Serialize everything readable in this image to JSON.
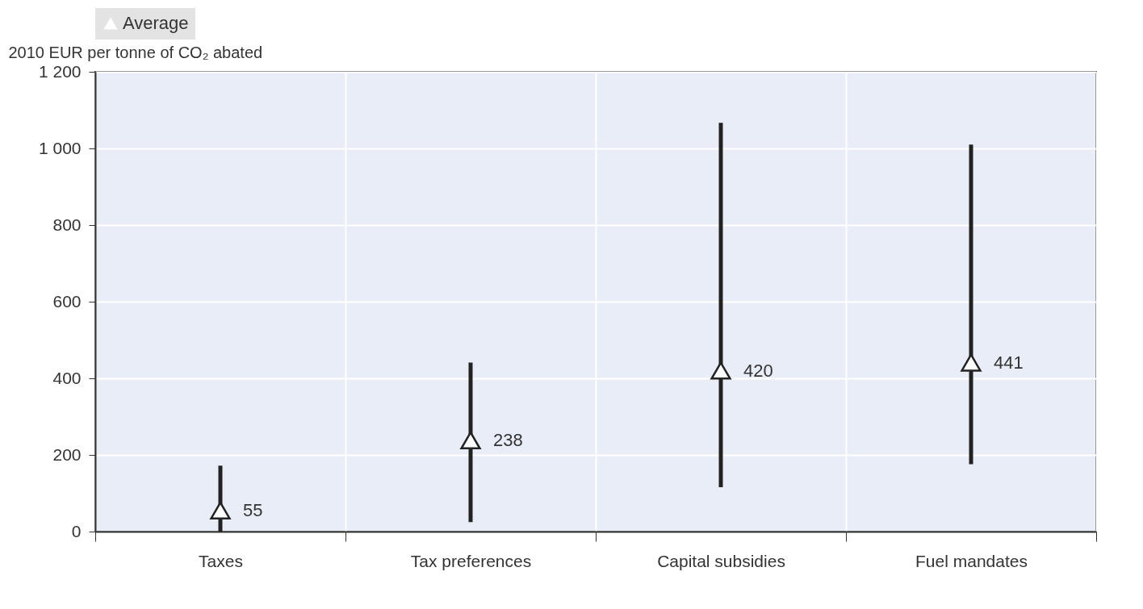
{
  "chart_data": {
    "type": "scatter",
    "ylabel": "2010 EUR per tonne of CO₂ abated",
    "categories": [
      "Taxes",
      "Tax preferences",
      "Capital subsidies",
      "Fuel mandates"
    ],
    "series": [
      {
        "name": "Average",
        "color": "#222222",
        "values": [
          55,
          238,
          420,
          441
        ],
        "errors": [
          [
            0,
            172
          ],
          [
            25,
            441
          ],
          [
            116,
            1067
          ],
          [
            176,
            1010
          ]
        ]
      }
    ],
    "ylim": [
      0,
      1200
    ],
    "yticks": [
      0,
      200,
      400,
      600,
      800,
      {
        "value": 1000,
        "label": "1 000"
      },
      {
        "value": 1200,
        "label": "1 200"
      }
    ],
    "grid": true,
    "legend": "top",
    "marker": "triangle",
    "data_labels": true
  }
}
